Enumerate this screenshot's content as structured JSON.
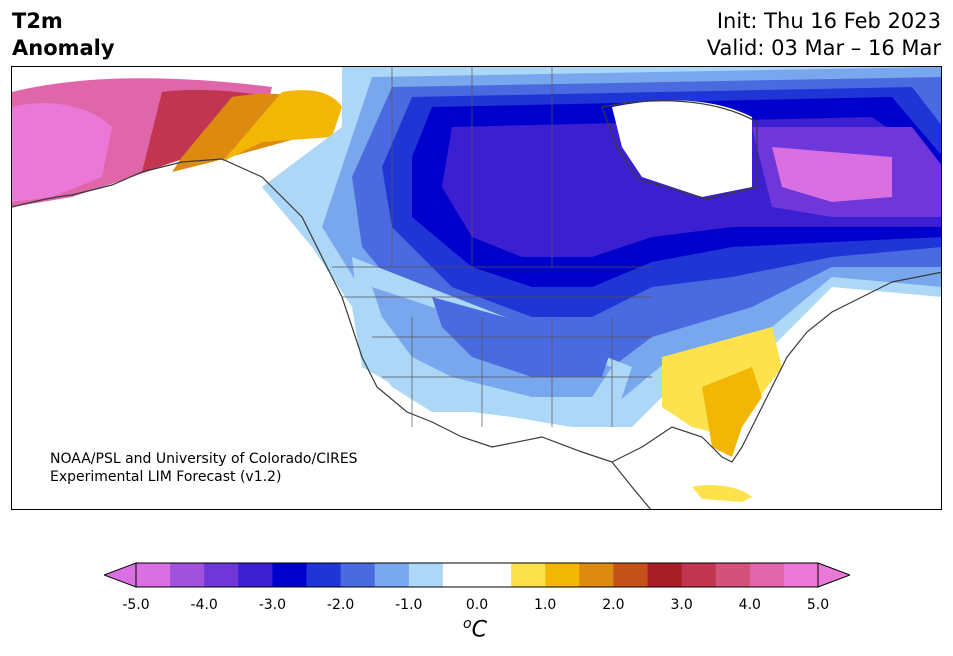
{
  "header": {
    "title_line1": "T2m",
    "title_line2": "Anomaly",
    "init_text": "Init: Thu 16 Feb 2023",
    "valid_text": "Valid: 03 Mar – 16 Mar"
  },
  "map": {
    "credit_line1": "NOAA/PSL and University of Colorado/CIRES",
    "credit_line2": "Experimental LIM Forecast (v1.2)",
    "features": [
      {
        "name": "alaska-warm-anomaly",
        "value": 5.0
      },
      {
        "name": "yukon-warm-anomaly",
        "value": 1.5
      },
      {
        "name": "western-canada-cold-anomaly",
        "value": -2.0
      },
      {
        "name": "central-canada-cold-anomaly",
        "value": -3.0
      },
      {
        "name": "hudson-bay-region-cold-anomaly",
        "value": -3.5
      },
      {
        "name": "northeast-canada-cold-anomaly",
        "value": -4.5
      },
      {
        "name": "western-us-cool-anomaly",
        "value": -1.0
      },
      {
        "name": "northern-plains-cold-anomaly",
        "value": -2.5
      },
      {
        "name": "southeast-us-warm-anomaly",
        "value": 1.0
      },
      {
        "name": "florida-warm-anomaly",
        "value": 1.5
      }
    ]
  },
  "colorbar": {
    "colors": [
      "#d96fe0",
      "#9f52db",
      "#6f37d9",
      "#3b1fd1",
      "#0000cc",
      "#1f35d6",
      "#4a6be0",
      "#79a7ee",
      "#acd7f7",
      "#ffffff",
      "#ffffff",
      "#fde24d",
      "#f2b705",
      "#dd8a10",
      "#c4531a",
      "#a81e26",
      "#c13551",
      "#d4517c",
      "#e066aa",
      "#ea78d6"
    ],
    "tick_labels": [
      "-5.0",
      "-4.0",
      "-3.0",
      "-2.0",
      "-1.0",
      "0.0",
      "1.0",
      "2.0",
      "3.0",
      "4.0",
      "5.0"
    ],
    "unit_base": "C",
    "unit_sup": "o"
  }
}
